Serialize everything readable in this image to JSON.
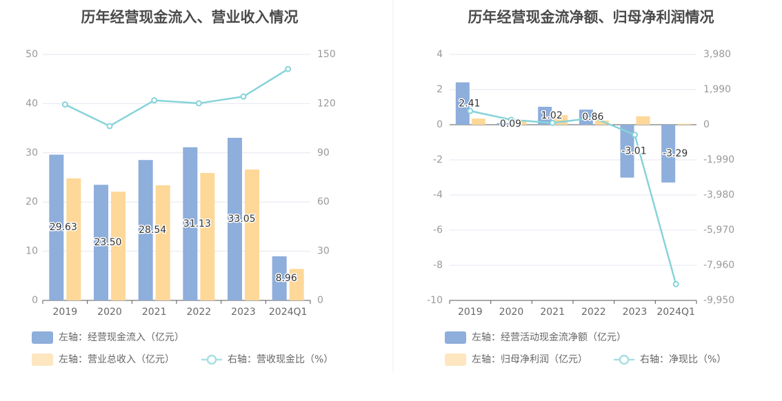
{
  "colors": {
    "bar_primary": "#8eaedb",
    "bar_secondary": "#fdd899",
    "line": "#86d3d9",
    "legend_secondary_swatch": "#fde6c0",
    "legend_line": "#a8dfe3",
    "grid": "#e4e7f0",
    "axis": "#555555",
    "divider": "#eeeeee"
  },
  "chart_data": [
    {
      "type": "bar+line",
      "title": "历年经营现金流入、营业收入情况",
      "categories": [
        "2019",
        "2020",
        "2021",
        "2022",
        "2023",
        "2024Q1"
      ],
      "left_ticks": [
        "0",
        "10",
        "20",
        "30",
        "40",
        "50"
      ],
      "right_ticks": [
        "0",
        "30",
        "60",
        "90",
        "120",
        "150"
      ],
      "ylim_left": [
        0,
        50
      ],
      "ylim_right": [
        0,
        150
      ],
      "grid": true,
      "legend_position": "bottom",
      "series": [
        {
          "name": "左轴：经营现金流入（亿元）",
          "type": "bar",
          "axis": "left",
          "values": [
            29.63,
            23.5,
            28.54,
            31.13,
            33.05,
            8.96
          ],
          "labels": [
            "29.63",
            "23.50",
            "28.54",
            "31.13",
            "33.05",
            "8.96"
          ]
        },
        {
          "name": "左轴：营业总收入（亿元）",
          "type": "bar",
          "axis": "left",
          "values": [
            24.8,
            22.1,
            23.4,
            25.9,
            26.6,
            6.4
          ]
        },
        {
          "name": "右轴：营收现金比（%）",
          "type": "line",
          "axis": "right",
          "values": [
            119.5,
            106.3,
            122.0,
            120.2,
            124.3,
            141.1
          ]
        }
      ]
    },
    {
      "type": "bar+line",
      "title": "历年经营现金流净额、归母净利润情况",
      "categories": [
        "2019",
        "2020",
        "2021",
        "2022",
        "2023",
        "2024Q1"
      ],
      "left_ticks": [
        "-10",
        "-8",
        "-6",
        "-4",
        "-2",
        "0",
        "2",
        "4"
      ],
      "right_ticks": [
        "-9,950",
        "-7,960",
        "-5,970",
        "-3,980",
        "-1,990",
        "0",
        "1,990",
        "3,980"
      ],
      "ylim_left": [
        -10,
        4
      ],
      "ylim_right": [
        -9950,
        3980
      ],
      "grid": true,
      "legend_position": "bottom",
      "series": [
        {
          "name": "左轴：经营活动现金流净额（亿元）",
          "type": "bar",
          "axis": "left",
          "values": [
            2.41,
            0.09,
            1.02,
            0.86,
            -3.01,
            -3.29
          ],
          "labels": [
            "2.41",
            "0.09",
            "1.02",
            "0.86",
            "-3.01",
            "-3.29"
          ]
        },
        {
          "name": "左轴：归母净利润（亿元）",
          "type": "bar",
          "axis": "left",
          "values": [
            0.35,
            0.27,
            0.55,
            0.24,
            0.48,
            0.05
          ]
        },
        {
          "name": "右轴：净现比（%）",
          "type": "line",
          "axis": "right",
          "values": [
            780,
            280,
            100,
            390,
            -570,
            -9030
          ]
        }
      ]
    }
  ]
}
